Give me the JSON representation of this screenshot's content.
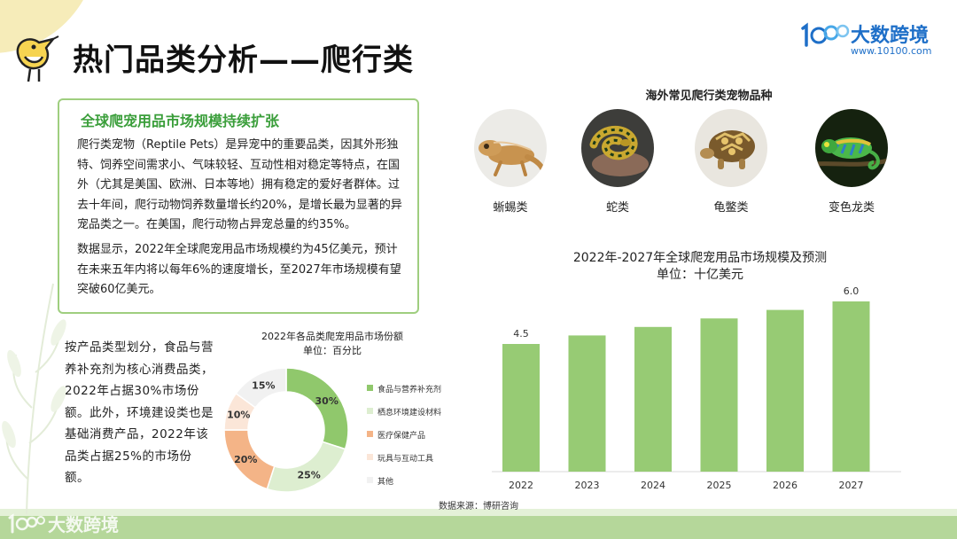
{
  "header": {
    "title": "热门品类分析——爬行类",
    "brand_name": "大数跨境",
    "brand_url": "www.10100.com"
  },
  "info": {
    "title": "全球爬宠用品市场规模持续扩张",
    "paragraph1": "爬行类宠物（Reptile Pets）是异宠中的重要品类，因其外形独特、饲养空间需求小、气味较轻、互动性相对稳定等特点，在国外（尤其是美国、欧洲、日本等地）拥有稳定的爱好者群体。过去十年间，爬行动物饲养数量增长约20%，是增长最为显著的异宠品类之一。在美国，爬行动物占异宠总量的约35%。",
    "paragraph2": "数据显示，2022年全球爬宠用品市场规模约为45亿美元，预计在未来五年内将以每年6%的速度增长，至2027年市场规模有望突破60亿美元。"
  },
  "species": {
    "title": "海外常见爬行类宠物品种",
    "items": [
      {
        "label": "蜥蜴类",
        "icon": "lizard-photo"
      },
      {
        "label": "蛇类",
        "icon": "snake-photo"
      },
      {
        "label": "龟鳖类",
        "icon": "tortoise-photo"
      },
      {
        "label": "变色龙类",
        "icon": "chameleon-photo"
      }
    ]
  },
  "side_text": "按产品类型划分，食品与营养补充剂为核心消费品类，2022年占据30%市场份额。此外，环境建设类也是基础消费产品，2022年该品类占据25%的市场份额。",
  "source": "数据来源：博研咨询",
  "watermark": "大数跨境",
  "chart_data": [
    {
      "type": "bar",
      "title": "2022年-2027年全球爬宠用品市场规模及预测",
      "subtitle": "单位：十亿美元",
      "categories": [
        "2022",
        "2023",
        "2024",
        "2025",
        "2026",
        "2027"
      ],
      "values": [
        4.5,
        4.8,
        5.1,
        5.4,
        5.7,
        6.0
      ],
      "data_labels": {
        "2022": "4.5",
        "2027": "6.0"
      },
      "ylim": [
        0,
        6.5
      ],
      "color": "#97cb74",
      "grid": false
    },
    {
      "type": "pie",
      "donut": true,
      "title": "2022年各品类爬宠用品市场份额",
      "subtitle": "单位：百分比",
      "series": [
        {
          "name": "食品与营养补充剂",
          "value": 30,
          "label": "30%",
          "color": "#90c86c"
        },
        {
          "name": "栖息环境建设材料",
          "value": 25,
          "label": "25%",
          "color": "#ddeed0"
        },
        {
          "name": "医疗保健产品",
          "value": 20,
          "label": "20%",
          "color": "#f4b487"
        },
        {
          "name": "玩具与互动工具",
          "value": 10,
          "label": "10%",
          "color": "#fbe6d8"
        },
        {
          "name": "其他",
          "value": 15,
          "label": "15%",
          "color": "#f1f1f1"
        }
      ],
      "legend_position": "right"
    }
  ]
}
